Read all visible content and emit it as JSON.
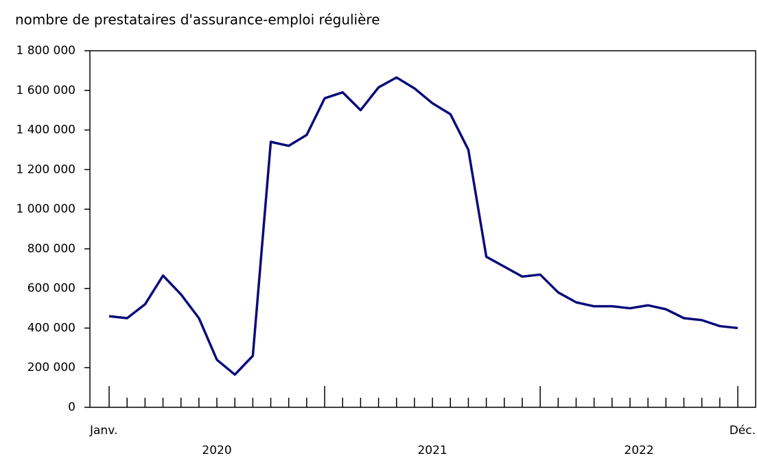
{
  "chart_data": {
    "type": "line",
    "title": "nombre de prestataires d'assurance-emploi régulière",
    "categories": [
      "Janv.",
      null,
      null,
      null,
      null,
      null,
      null,
      null,
      null,
      null,
      null,
      null,
      null,
      null,
      null,
      null,
      null,
      null,
      null,
      null,
      null,
      null,
      null,
      null,
      null,
      null,
      null,
      null,
      null,
      null,
      null,
      null,
      null,
      null,
      null,
      "Déc."
    ],
    "years": [
      "2020",
      "2021",
      "2022"
    ],
    "series": [
      {
        "color": "#0a0a7a",
        "values": [
          460000,
          450000,
          520000,
          665000,
          570000,
          450000,
          240000,
          165000,
          260000,
          1340000,
          1320000,
          1375000,
          1560000,
          1590000,
          1500000,
          1615000,
          1665000,
          1610000,
          1535000,
          1480000,
          1300000,
          760000,
          710000,
          660000,
          670000,
          580000,
          530000,
          510000,
          510000,
          500000,
          515000,
          495000,
          450000,
          440000,
          410000,
          400000
        ]
      }
    ],
    "ylim": [
      0,
      1800000
    ],
    "yticks": [
      0,
      {
        "value": 200000,
        "label": "200 000"
      },
      {
        "value": 400000,
        "label": "400 000"
      },
      {
        "value": 600000,
        "label": "600 000"
      },
      {
        "value": 800000,
        "label": "800 000"
      },
      {
        "value": 1000000,
        "label": "1 000 000"
      },
      {
        "value": 1200000,
        "label": "1 200 000"
      },
      {
        "value": 1400000,
        "label": "1 400 000"
      },
      {
        "value": 1600000,
        "label": "1 600 000"
      },
      {
        "value": 1800000,
        "label": "1 800 000"
      }
    ]
  }
}
